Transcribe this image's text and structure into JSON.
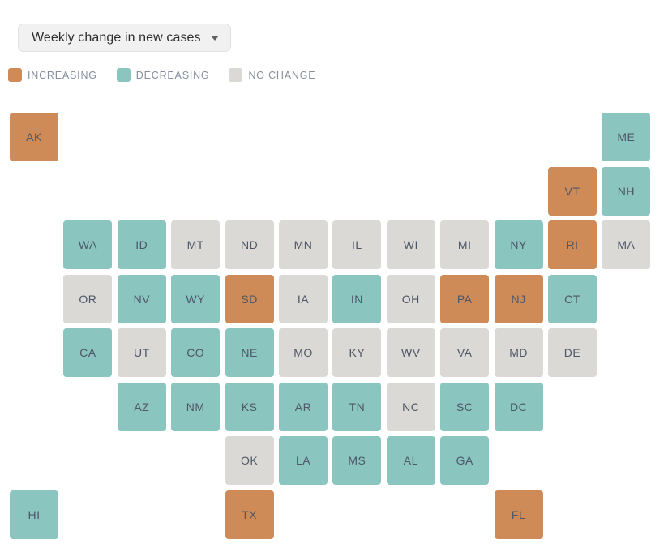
{
  "dropdown": {
    "label": "Weekly change in new cases",
    "icon": "chevron-down"
  },
  "legend": {
    "items": [
      {
        "status": "increasing",
        "label": "INCREASING",
        "color": "#cf8b57"
      },
      {
        "status": "decreasing",
        "label": "DECREASING",
        "color": "#8ac5bf"
      },
      {
        "status": "no_change",
        "label": "NO CHANGE",
        "color": "#dbd9d6"
      }
    ]
  },
  "tile_label_color": "#4d5766",
  "chart_data": {
    "type": "heatmap",
    "subtype": "us-state-tile-grid-cartogram",
    "title": "Weekly change in new cases",
    "legend_position": "top-left",
    "categories": [
      "increasing",
      "decreasing",
      "no_change"
    ],
    "states": [
      {
        "abbr": "AK",
        "row": 0,
        "col": 0,
        "status": "increasing"
      },
      {
        "abbr": "ME",
        "row": 0,
        "col": 11,
        "status": "decreasing"
      },
      {
        "abbr": "VT",
        "row": 1,
        "col": 10,
        "status": "increasing"
      },
      {
        "abbr": "NH",
        "row": 1,
        "col": 11,
        "status": "decreasing"
      },
      {
        "abbr": "WA",
        "row": 2,
        "col": 1,
        "status": "decreasing"
      },
      {
        "abbr": "ID",
        "row": 2,
        "col": 2,
        "status": "decreasing"
      },
      {
        "abbr": "MT",
        "row": 2,
        "col": 3,
        "status": "no_change"
      },
      {
        "abbr": "ND",
        "row": 2,
        "col": 4,
        "status": "no_change"
      },
      {
        "abbr": "MN",
        "row": 2,
        "col": 5,
        "status": "no_change"
      },
      {
        "abbr": "IL",
        "row": 2,
        "col": 6,
        "status": "no_change"
      },
      {
        "abbr": "WI",
        "row": 2,
        "col": 7,
        "status": "no_change"
      },
      {
        "abbr": "MI",
        "row": 2,
        "col": 8,
        "status": "no_change"
      },
      {
        "abbr": "NY",
        "row": 2,
        "col": 9,
        "status": "decreasing"
      },
      {
        "abbr": "RI",
        "row": 2,
        "col": 10,
        "status": "increasing"
      },
      {
        "abbr": "MA",
        "row": 2,
        "col": 11,
        "status": "no_change"
      },
      {
        "abbr": "OR",
        "row": 3,
        "col": 1,
        "status": "no_change"
      },
      {
        "abbr": "NV",
        "row": 3,
        "col": 2,
        "status": "decreasing"
      },
      {
        "abbr": "WY",
        "row": 3,
        "col": 3,
        "status": "decreasing"
      },
      {
        "abbr": "SD",
        "row": 3,
        "col": 4,
        "status": "increasing"
      },
      {
        "abbr": "IA",
        "row": 3,
        "col": 5,
        "status": "no_change"
      },
      {
        "abbr": "IN",
        "row": 3,
        "col": 6,
        "status": "decreasing"
      },
      {
        "abbr": "OH",
        "row": 3,
        "col": 7,
        "status": "no_change"
      },
      {
        "abbr": "PA",
        "row": 3,
        "col": 8,
        "status": "increasing"
      },
      {
        "abbr": "NJ",
        "row": 3,
        "col": 9,
        "status": "increasing"
      },
      {
        "abbr": "CT",
        "row": 3,
        "col": 10,
        "status": "decreasing"
      },
      {
        "abbr": "CA",
        "row": 4,
        "col": 1,
        "status": "decreasing"
      },
      {
        "abbr": "UT",
        "row": 4,
        "col": 2,
        "status": "no_change"
      },
      {
        "abbr": "CO",
        "row": 4,
        "col": 3,
        "status": "decreasing"
      },
      {
        "abbr": "NE",
        "row": 4,
        "col": 4,
        "status": "decreasing"
      },
      {
        "abbr": "MO",
        "row": 4,
        "col": 5,
        "status": "no_change"
      },
      {
        "abbr": "KY",
        "row": 4,
        "col": 6,
        "status": "no_change"
      },
      {
        "abbr": "WV",
        "row": 4,
        "col": 7,
        "status": "no_change"
      },
      {
        "abbr": "VA",
        "row": 4,
        "col": 8,
        "status": "no_change"
      },
      {
        "abbr": "MD",
        "row": 4,
        "col": 9,
        "status": "no_change"
      },
      {
        "abbr": "DE",
        "row": 4,
        "col": 10,
        "status": "no_change"
      },
      {
        "abbr": "AZ",
        "row": 5,
        "col": 2,
        "status": "decreasing"
      },
      {
        "abbr": "NM",
        "row": 5,
        "col": 3,
        "status": "decreasing"
      },
      {
        "abbr": "KS",
        "row": 5,
        "col": 4,
        "status": "decreasing"
      },
      {
        "abbr": "AR",
        "row": 5,
        "col": 5,
        "status": "decreasing"
      },
      {
        "abbr": "TN",
        "row": 5,
        "col": 6,
        "status": "decreasing"
      },
      {
        "abbr": "NC",
        "row": 5,
        "col": 7,
        "status": "no_change"
      },
      {
        "abbr": "SC",
        "row": 5,
        "col": 8,
        "status": "decreasing"
      },
      {
        "abbr": "DC",
        "row": 5,
        "col": 9,
        "status": "decreasing"
      },
      {
        "abbr": "OK",
        "row": 6,
        "col": 4,
        "status": "no_change"
      },
      {
        "abbr": "LA",
        "row": 6,
        "col": 5,
        "status": "decreasing"
      },
      {
        "abbr": "MS",
        "row": 6,
        "col": 6,
        "status": "decreasing"
      },
      {
        "abbr": "AL",
        "row": 6,
        "col": 7,
        "status": "decreasing"
      },
      {
        "abbr": "GA",
        "row": 6,
        "col": 8,
        "status": "decreasing"
      },
      {
        "abbr": "HI",
        "row": 7,
        "col": 0,
        "status": "decreasing"
      },
      {
        "abbr": "TX",
        "row": 7,
        "col": 4,
        "status": "increasing"
      },
      {
        "abbr": "FL",
        "row": 7,
        "col": 9,
        "status": "increasing"
      }
    ]
  }
}
